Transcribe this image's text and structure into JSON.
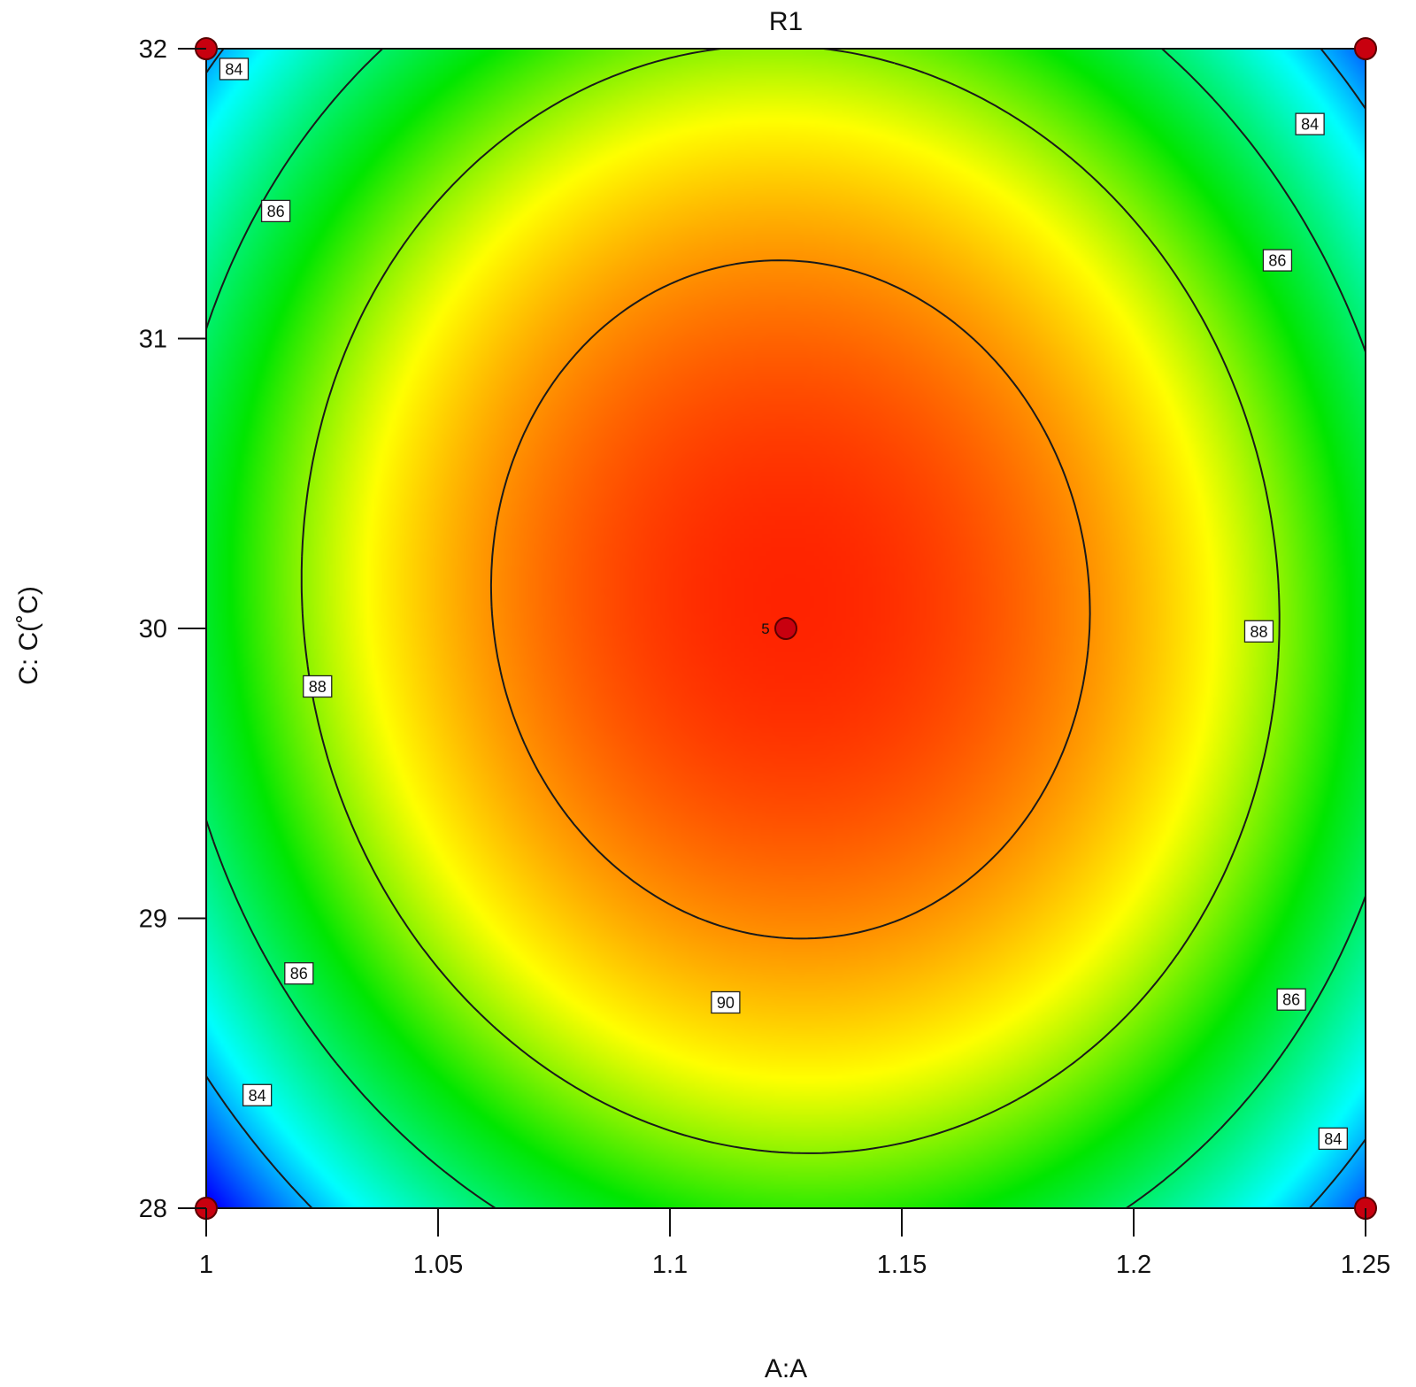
{
  "chart_data": {
    "type": "heatmap",
    "subtype": "contour",
    "title": "R1",
    "xlabel": "A:A",
    "ylabel": "C: C(˚C)",
    "xlim": [
      1,
      1.25
    ],
    "ylim": [
      28,
      32
    ],
    "x_ticks": [
      "1",
      "1.05",
      "1.1",
      "1.15",
      "1.2",
      "1.25"
    ],
    "y_ticks": [
      "28",
      "29",
      "30",
      "31",
      "32"
    ],
    "grid": false,
    "legend": "none",
    "colorscale": [
      "#0000ff",
      "#00ffff",
      "#00ff00",
      "#ffff00",
      "#ff0000"
    ],
    "contour_levels": [
      84,
      86,
      88,
      90
    ],
    "contour_labels": [
      {
        "level": "84",
        "x": 1.006,
        "y": 31.93
      },
      {
        "level": "84",
        "x": 1.238,
        "y": 31.74
      },
      {
        "level": "84",
        "x": 1.011,
        "y": 28.39
      },
      {
        "level": "84",
        "x": 1.243,
        "y": 28.24
      },
      {
        "level": "86",
        "x": 1.015,
        "y": 31.44
      },
      {
        "level": "86",
        "x": 1.231,
        "y": 31.27
      },
      {
        "level": "86",
        "x": 1.02,
        "y": 28.81
      },
      {
        "level": "86",
        "x": 1.234,
        "y": 28.72
      },
      {
        "level": "88",
        "x": 1.024,
        "y": 29.8
      },
      {
        "level": "88",
        "x": 1.227,
        "y": 29.99
      },
      {
        "level": "90",
        "x": 1.112,
        "y": 28.71
      }
    ],
    "design_points": [
      {
        "x": 1,
        "y": 32,
        "label": ""
      },
      {
        "x": 1.25,
        "y": 32,
        "label": ""
      },
      {
        "x": 1,
        "y": 28,
        "label": ""
      },
      {
        "x": 1.25,
        "y": 28,
        "label": ""
      },
      {
        "x": 1.125,
        "y": 30,
        "label": "5"
      }
    ]
  }
}
